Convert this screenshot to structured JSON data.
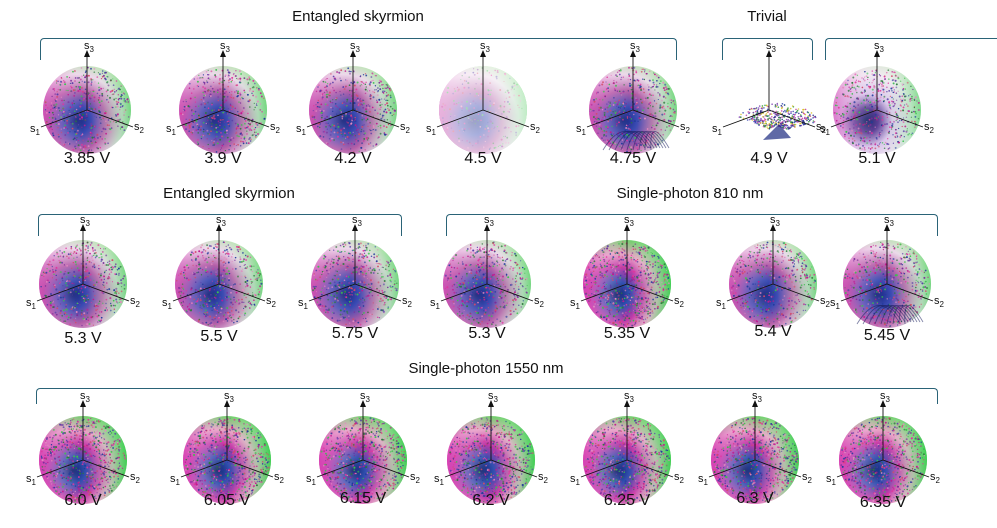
{
  "groups": [
    {
      "label": "Entangled skyrmion"
    },
    {
      "label": "Trivial"
    },
    {
      "label": "Entangled skyrmion"
    },
    {
      "label": "Single-photon 810 nm"
    },
    {
      "label": "Single-photon 1550 nm"
    }
  ],
  "axes": {
    "s1": "s",
    "s1_sub": "1",
    "s2": "s",
    "s2_sub": "2",
    "s3": "s",
    "s3_sub": "3"
  },
  "spheres": [
    {
      "voltage": "3.85 V",
      "style": "skyrmion"
    },
    {
      "voltage": "3.9 V",
      "style": "skyrmion"
    },
    {
      "voltage": "4.2 V",
      "style": "skyrmion"
    },
    {
      "voltage": "4.5 V",
      "style": "skyrmion-sparse"
    },
    {
      "voltage": "4.75 V",
      "style": "skyrmion-swirl"
    },
    {
      "voltage": "4.9 V",
      "style": "trivial"
    },
    {
      "voltage": "5.1 V",
      "style": "skyrmion-light"
    },
    {
      "voltage": "5.3 V",
      "style": "skyrmion"
    },
    {
      "voltage": "5.5 V",
      "style": "skyrmion"
    },
    {
      "voltage": "5.75 V",
      "style": "skyrmion"
    },
    {
      "voltage": "5.3 V",
      "style": "skyrmion"
    },
    {
      "voltage": "5.35 V",
      "style": "dense"
    },
    {
      "voltage": "5.4 V",
      "style": "skyrmion"
    },
    {
      "voltage": "5.45 V",
      "style": "skyrmion-swirl"
    },
    {
      "voltage": "6.0 V",
      "style": "dense"
    },
    {
      "voltage": "6.05 V",
      "style": "dense"
    },
    {
      "voltage": "6.15 V",
      "style": "dense"
    },
    {
      "voltage": "6.2 V",
      "style": "dense"
    },
    {
      "voltage": "6.25 V",
      "style": "dense"
    },
    {
      "voltage": "6.3 V",
      "style": "dense"
    },
    {
      "voltage": "6.35 V",
      "style": "dense"
    }
  ]
}
